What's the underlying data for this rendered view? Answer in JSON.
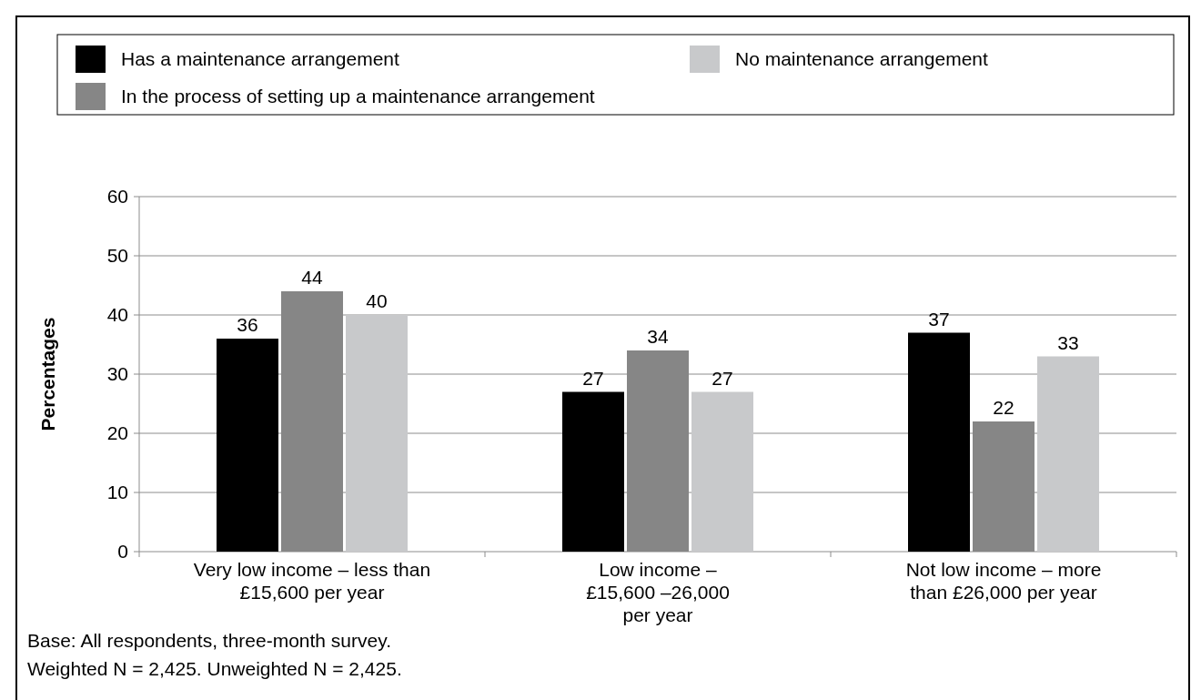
{
  "chart_data": {
    "type": "bar",
    "ylabel": "Percentages",
    "categories": [
      "Very low income – less than\n£15,600 per year",
      "Low income –\n£15,600 –26,000\nper year",
      "Not low income – more\nthan £26,000 per year"
    ],
    "series": [
      {
        "name": "Has a maintenance arrangement",
        "color": "#000000",
        "values": [
          36,
          27,
          37
        ]
      },
      {
        "name": "In the process of setting up a maintenance arrangement",
        "color": "#868686",
        "values": [
          44,
          34,
          22
        ]
      },
      {
        "name": "No maintenance arrangement",
        "color": "#c8c9cb",
        "values": [
          40,
          27,
          33
        ]
      }
    ],
    "ylim": [
      0,
      60
    ],
    "yticks": [
      0,
      10,
      20,
      30,
      40,
      50,
      60
    ],
    "grid": "y",
    "legend": "top",
    "data_labels": true,
    "annotations": [
      "Base: All respondents, three-month survey.",
      "Weighted N = 2,425. Unweighted N = 2,425."
    ]
  }
}
